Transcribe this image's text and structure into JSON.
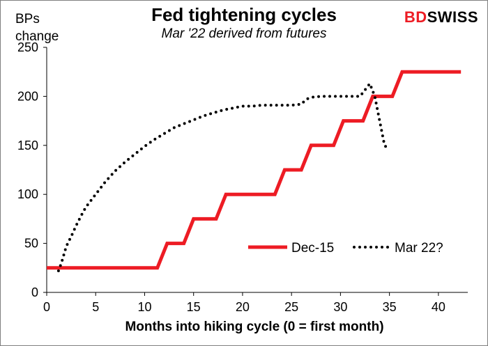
{
  "brand": {
    "part1": "BD",
    "part2": "SWISS"
  },
  "chart_data": {
    "type": "line",
    "title": "Fed tightening cycles",
    "subtitle": "Mar '22 derived from futures",
    "ylabel": "BPs change",
    "xlabel": "Months into hiking cycle (0 = first month)",
    "xlim": [
      0,
      43
    ],
    "ylim": [
      0,
      250
    ],
    "xticks": [
      0,
      5,
      10,
      15,
      20,
      25,
      30,
      35,
      40
    ],
    "yticks": [
      0,
      50,
      100,
      150,
      200,
      250
    ],
    "grid": false,
    "legend_position": "bottom-right inside plot",
    "series": [
      {
        "name": "Dec-15",
        "color": "#ed1c24",
        "style": "solid",
        "x": [
          0,
          11.3,
          12.3,
          14.0,
          15.0,
          17.3,
          18.3,
          23.3,
          24.3,
          26.0,
          27.0,
          29.3,
          30.3,
          32.3,
          33.3,
          35.3,
          36.3,
          42.3
        ],
        "y": [
          25,
          25,
          50,
          50,
          75,
          75,
          100,
          100,
          125,
          125,
          150,
          150,
          175,
          175,
          200,
          200,
          225,
          225
        ]
      },
      {
        "name": "Mar 22?",
        "color": "#000000",
        "style": "dotted",
        "x": [
          1.2,
          1.5,
          2,
          2.5,
          3,
          3.5,
          4,
          5,
          6,
          7,
          8,
          9,
          10,
          11,
          12,
          13,
          14,
          15,
          16,
          17,
          18,
          19,
          20,
          21,
          22,
          23,
          24,
          25,
          26,
          26.5,
          27,
          28,
          29,
          30,
          31,
          32,
          33,
          33.5,
          34,
          34.5,
          35
        ],
        "y": [
          22,
          30,
          47,
          57,
          68,
          78,
          87,
          100,
          113,
          124,
          133,
          141,
          149,
          156,
          162,
          168,
          172,
          176,
          180,
          183,
          186,
          188,
          190,
          190,
          191,
          191,
          191,
          191,
          192,
          197,
          199,
          200,
          200,
          200,
          200,
          200,
          213,
          200,
          175,
          150,
          145
        ]
      }
    ]
  }
}
